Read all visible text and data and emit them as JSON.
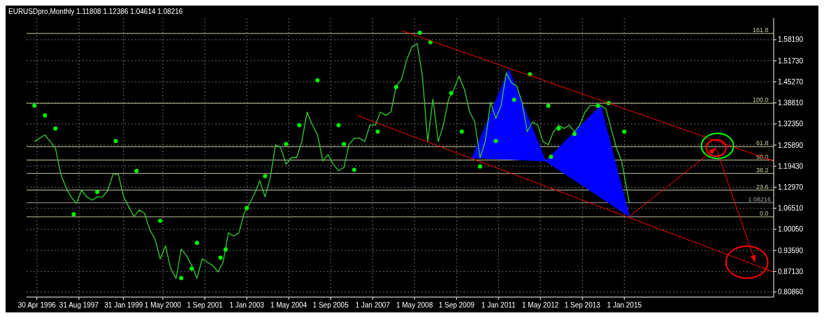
{
  "chart_data": {
    "type": "line",
    "title": "EURUSDpro,Monthly  1.11808 1.12386 1.04614 1.08216",
    "xlim": [
      "1996-01",
      "2019-10"
    ],
    "ylim": [
      0.793,
      1.648
    ],
    "xticks": [
      {
        "value": "1996-04-30",
        "label": "30 Apr 1996"
      },
      {
        "value": "1997-08-31",
        "label": "31 Aug 1997"
      },
      {
        "value": "1999-01-31",
        "label": "31 Jan 1999"
      },
      {
        "value": "2000-05-01",
        "label": "1 May 2000"
      },
      {
        "value": "2001-09-01",
        "label": "1 Sep 2001"
      },
      {
        "value": "2003-01-01",
        "label": "1 Jan 2003"
      },
      {
        "value": "2004-05-01",
        "label": "1 May 2004"
      },
      {
        "value": "2005-09-01",
        "label": "1 Sep 2005"
      },
      {
        "value": "2007-01-01",
        "label": "1 Jan 2007"
      },
      {
        "value": "2008-05-01",
        "label": "1 May 2008"
      },
      {
        "value": "2009-09-01",
        "label": "1 Sep 2009"
      },
      {
        "value": "2011-01-01",
        "label": "1 Jan 2011"
      },
      {
        "value": "2012-05-01",
        "label": "1 May 2012"
      },
      {
        "value": "2013-09-01",
        "label": "1 Sep 2013"
      },
      {
        "value": "2015-01-01",
        "label": "1 Jan 2015"
      }
    ],
    "yticks": [
      {
        "value": 0.8086,
        "label": "0.80860"
      },
      {
        "value": 0.8713,
        "label": "0.87130"
      },
      {
        "value": 0.9359,
        "label": "0.93590"
      },
      {
        "value": 1.0005,
        "label": "1.00050"
      },
      {
        "value": 1.0651,
        "label": "1.06510"
      },
      {
        "value": 1.1297,
        "label": "1.12970"
      },
      {
        "value": 1.1943,
        "label": "1.19430"
      },
      {
        "value": 1.2589,
        "label": "1.25890"
      },
      {
        "value": 1.3235,
        "label": "1.32350"
      },
      {
        "value": 1.3881,
        "label": "1.38810"
      },
      {
        "value": 1.4527,
        "label": "1.45270"
      },
      {
        "value": 1.5173,
        "label": "1.51730"
      },
      {
        "value": 1.5819,
        "label": "1.58190"
      }
    ],
    "grid": true,
    "annotations": [
      {
        "text": "161.8",
        "x": "2019-08",
        "y": 1.601
      },
      {
        "text": "100.0",
        "x": "2019-08",
        "y": 1.387
      },
      {
        "text": "61.8",
        "x": "2019-08",
        "y": 1.254
      },
      {
        "text": "50.0",
        "x": "2019-08",
        "y": 1.213
      },
      {
        "text": "38.2",
        "x": "2019-08",
        "y": 1.172
      },
      {
        "text": "23.6",
        "x": "2019-08",
        "y": 1.121
      },
      {
        "text": "0.0",
        "x": "2019-08",
        "y": 1.039
      }
    ],
    "ref_lines": [
      {
        "axis": "y",
        "value": 1.601,
        "color": "#c8c8a0"
      },
      {
        "axis": "y",
        "value": 1.387,
        "color": "#c8c8a0"
      },
      {
        "axis": "y",
        "value": 1.254,
        "color": "#c8c8a0"
      },
      {
        "axis": "y",
        "value": 1.213,
        "color": "#c8c8a0"
      },
      {
        "axis": "y",
        "value": 1.172,
        "color": "#c8c8a0"
      },
      {
        "axis": "y",
        "value": 1.121,
        "color": "#c8c8a0"
      },
      {
        "axis": "y",
        "value": 1.039,
        "color": "#c8c8a0"
      },
      {
        "axis": "y",
        "value": 1.08216,
        "label": "1.08216",
        "color": "#a0a0a0"
      }
    ],
    "series": [
      {
        "color": "#32cd32",
        "x": [
          "1996-04",
          "1996-06",
          "1996-08",
          "1996-10",
          "1996-12",
          "1997-02",
          "1997-04",
          "1997-06",
          "1997-08",
          "1997-10",
          "1997-12",
          "1998-02",
          "1998-04",
          "1998-06",
          "1998-08",
          "1998-10",
          "1998-12",
          "1999-02",
          "1999-04",
          "1999-06",
          "1999-08",
          "1999-10",
          "1999-12",
          "2000-02",
          "2000-04",
          "2000-06",
          "2000-08",
          "2000-10",
          "2000-12",
          "2001-02",
          "2001-04",
          "2001-06",
          "2001-08",
          "2001-10",
          "2001-12",
          "2002-02",
          "2002-04",
          "2002-06",
          "2002-08",
          "2002-10",
          "2002-12",
          "2003-02",
          "2003-04",
          "2003-06",
          "2003-08",
          "2003-10",
          "2003-12",
          "2004-02",
          "2004-04",
          "2004-06",
          "2004-08",
          "2004-10",
          "2004-12",
          "2005-02",
          "2005-04",
          "2005-06",
          "2005-08",
          "2005-10",
          "2005-12",
          "2006-02",
          "2006-04",
          "2006-06",
          "2006-08",
          "2006-10",
          "2006-12",
          "2007-02",
          "2007-04",
          "2007-06",
          "2007-08",
          "2007-10",
          "2007-12",
          "2008-02",
          "2008-04",
          "2008-06",
          "2008-08",
          "2008-10",
          "2008-12",
          "2009-02",
          "2009-04",
          "2009-06",
          "2009-08",
          "2009-10",
          "2009-12",
          "2010-02",
          "2010-04",
          "2010-06",
          "2010-08",
          "2010-10",
          "2010-12",
          "2011-02",
          "2011-04",
          "2011-06",
          "2011-08",
          "2011-10",
          "2011-12",
          "2012-02",
          "2012-04",
          "2012-06",
          "2012-08",
          "2012-10",
          "2012-12",
          "2013-02",
          "2013-04",
          "2013-06",
          "2013-08",
          "2013-10",
          "2013-12",
          "2014-02",
          "2014-04",
          "2014-06",
          "2014-08",
          "2014-10",
          "2014-12",
          "2015-02",
          "2015-03"
        ],
        "values": [
          1.27,
          1.28,
          1.29,
          1.27,
          1.25,
          1.17,
          1.13,
          1.1,
          1.08,
          1.12,
          1.1,
          1.09,
          1.1,
          1.1,
          1.12,
          1.17,
          1.17,
          1.1,
          1.07,
          1.04,
          1.06,
          1.05,
          1.0,
          0.97,
          0.91,
          0.95,
          0.88,
          0.85,
          0.94,
          0.92,
          0.89,
          0.85,
          0.91,
          0.9,
          0.89,
          0.87,
          0.9,
          0.99,
          0.98,
          0.99,
          1.05,
          1.08,
          1.11,
          1.15,
          1.1,
          1.16,
          1.26,
          1.25,
          1.2,
          1.22,
          1.22,
          1.27,
          1.36,
          1.32,
          1.29,
          1.21,
          1.23,
          1.2,
          1.18,
          1.19,
          1.26,
          1.28,
          1.28,
          1.27,
          1.32,
          1.32,
          1.36,
          1.35,
          1.36,
          1.44,
          1.46,
          1.52,
          1.56,
          1.57,
          1.47,
          1.27,
          1.4,
          1.27,
          1.32,
          1.4,
          1.43,
          1.47,
          1.43,
          1.36,
          1.33,
          1.22,
          1.27,
          1.39,
          1.34,
          1.38,
          1.48,
          1.45,
          1.44,
          1.39,
          1.3,
          1.33,
          1.32,
          1.27,
          1.26,
          1.3,
          1.32,
          1.31,
          1.32,
          1.3,
          1.32,
          1.36,
          1.38,
          1.38,
          1.38,
          1.37,
          1.31,
          1.25,
          1.21,
          1.12,
          1.08
        ]
      },
      {
        "type": "scatter",
        "color": "#00ff00",
        "x": [
          "1996-04",
          "1996-08",
          "1996-12",
          "1997-07",
          "1998-04",
          "1998-11",
          "1999-07",
          "2000-04",
          "2000-12",
          "2001-04",
          "2001-06",
          "2002-03",
          "2002-05",
          "2003-01",
          "2003-08",
          "2004-04",
          "2004-09",
          "2005-04",
          "2005-12",
          "2006-02",
          "2006-06",
          "2007-03",
          "2007-10",
          "2008-07",
          "2008-11",
          "2009-07",
          "2009-11",
          "2010-06",
          "2010-12",
          "2011-07",
          "2012-01",
          "2012-08",
          "2012-09",
          "2012-12",
          "2013-06",
          "2014-03",
          "2014-07",
          "2015-01"
        ],
        "values": [
          1.38,
          1.35,
          1.31,
          1.047,
          1.115,
          1.271,
          1.18,
          1.027,
          0.851,
          0.88,
          0.959,
          0.914,
          0.939,
          1.066,
          1.164,
          1.262,
          1.32,
          1.457,
          1.32,
          1.262,
          1.183,
          1.3,
          1.437,
          1.603,
          1.574,
          1.418,
          1.3,
          1.193,
          1.271,
          1.398,
          1.476,
          1.379,
          1.223,
          1.31,
          1.293,
          1.379,
          1.388,
          1.3
        ]
      },
      {
        "type": "area",
        "color": "#0000ff",
        "x": [
          "2010-03",
          "2011-05",
          "2012-07"
        ],
        "values": [
          1.22,
          1.49,
          1.21
        ]
      },
      {
        "type": "area",
        "color": "#0000ff",
        "x": [
          "2012-07",
          "2014-04",
          "2015-03"
        ],
        "values": [
          1.21,
          1.38,
          1.04
        ]
      },
      {
        "type": "line",
        "color": "#ff0000",
        "x": [
          "2007-12",
          "2019-10"
        ],
        "values": [
          1.61,
          1.21
        ]
      },
      {
        "type": "line",
        "color": "#ff0000",
        "x": [
          "2006-07",
          "2019-10"
        ],
        "values": [
          1.35,
          0.87
        ]
      },
      {
        "type": "line",
        "color": "#ff0000",
        "x": [
          "2015-03",
          "2017-12",
          "2019-03"
        ],
        "values": [
          1.04,
          1.25,
          0.9
        ]
      }
    ]
  }
}
